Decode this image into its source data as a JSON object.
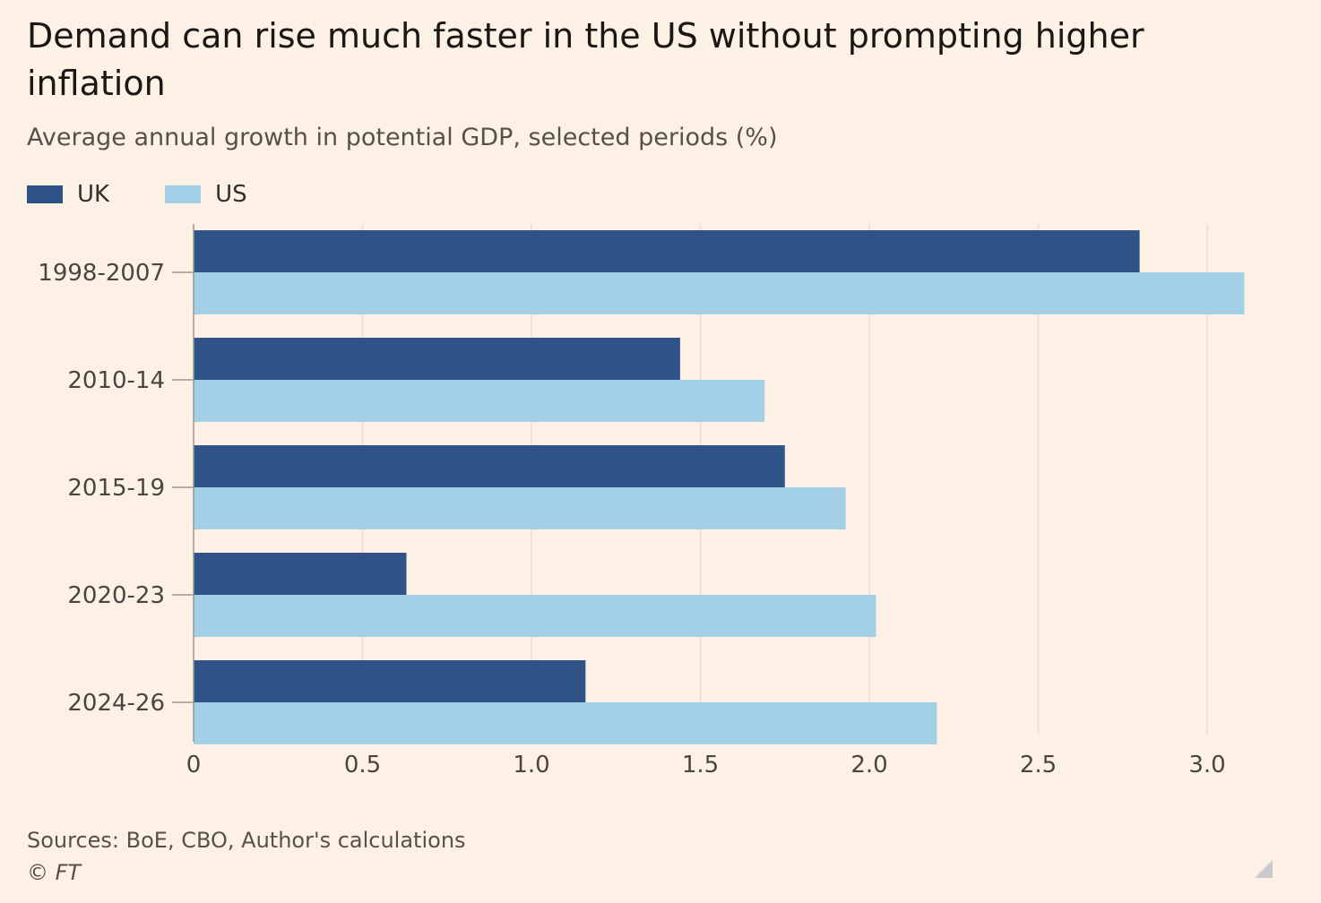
{
  "header": {
    "title": "Demand can rise much faster in the US without prompting higher inflation",
    "subtitle": "Average annual growth in potential GDP, selected periods (%)"
  },
  "footer": {
    "source": "Sources: BoE, CBO, Author's calculations",
    "credit": "© FT"
  },
  "colors": {
    "uk": "#2f5386",
    "us": "#a3d0e6",
    "grid": "#e7ded4",
    "axis": "#9c968f"
  },
  "chart_data": {
    "type": "bar",
    "orientation": "horizontal",
    "title": "Demand can rise much faster in the US without prompting higher inflation",
    "subtitle": "Average annual growth in potential GDP, selected periods (%)",
    "categories": [
      "1998-2007",
      "2010-14",
      "2015-19",
      "2020-23",
      "2024-26"
    ],
    "series": [
      {
        "name": "UK",
        "color": "#2f5386",
        "values": [
          2.8,
          1.44,
          1.75,
          0.63,
          1.16
        ]
      },
      {
        "name": "US",
        "color": "#a3d0e6",
        "values": [
          3.11,
          1.69,
          1.93,
          2.02,
          2.2
        ]
      }
    ],
    "xlim": [
      0,
      3.2
    ],
    "xticks": [
      0,
      0.5,
      1.0,
      1.5,
      2.0,
      2.5,
      3.0
    ],
    "xtick_labels": [
      "0",
      "0.5",
      "1.0",
      "1.5",
      "2.0",
      "2.5",
      "3.0"
    ],
    "grid": true,
    "legend_position": "top-left"
  },
  "resize_handle": {
    "icon": "resize-corner-icon"
  }
}
